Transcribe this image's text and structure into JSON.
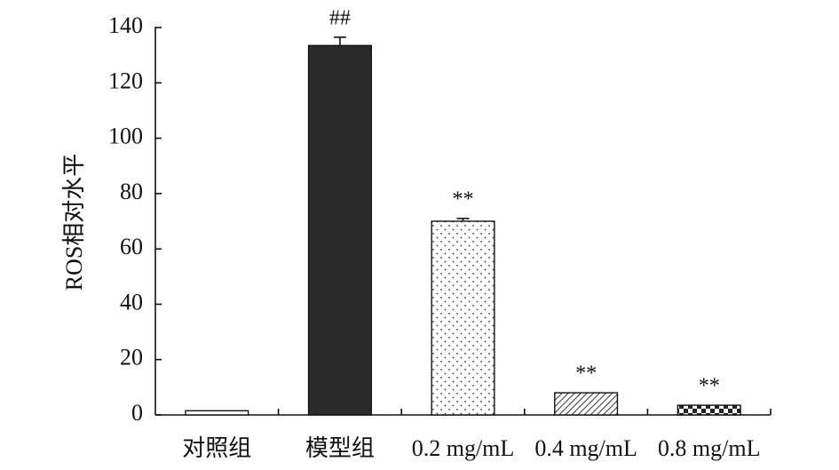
{
  "chart_data": {
    "type": "bar",
    "y_label": "ROS相对水平",
    "categories": [
      "对照组",
      "模型组",
      "0.2 mg/mL",
      "0.4 mg/mL",
      "0.8 mg/mL"
    ],
    "values": [
      1.5,
      133.5,
      70,
      8,
      3.5
    ],
    "errors": [
      null,
      3,
      1,
      null,
      null
    ],
    "annotations": [
      null,
      "##",
      "**",
      "**",
      "**"
    ],
    "fills": [
      "none",
      "solid",
      "dots",
      "hatch",
      "checker"
    ],
    "color": "#2b2b2b",
    "ylim": [
      0,
      140
    ],
    "yticks": [
      0,
      20,
      40,
      60,
      80,
      100,
      120,
      140
    ],
    "grid": false
  }
}
